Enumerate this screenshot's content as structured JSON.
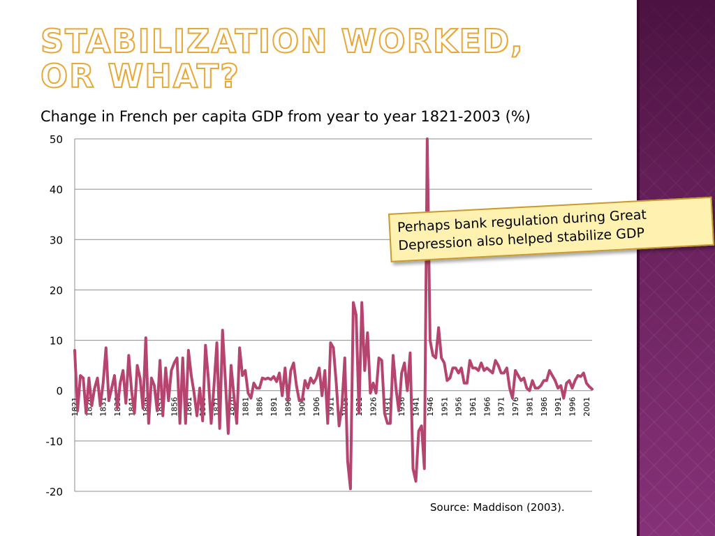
{
  "slide": {
    "title_line1": "Stabilization worked,",
    "title_line2": "or what?",
    "title_color": "#e8a838",
    "side_panel_color": "#7a2a6c"
  },
  "callout": {
    "text": "Perhaps bank regulation during Great Depression also helped stabilize GDP",
    "background": "#fff2b0",
    "border_color": "#c99a2e"
  },
  "source": "Source: Maddison (2003).",
  "chart_data": {
    "type": "line",
    "title": "Change in French per capita GDP from year to year 1821-2003 (%)",
    "xlabel": "",
    "ylabel": "",
    "ylim": [
      -20,
      50
    ],
    "yticks": [
      -20,
      -10,
      0,
      10,
      20,
      30,
      40,
      50
    ],
    "xticks": [
      1821,
      1826,
      1831,
      1836,
      1841,
      1846,
      1851,
      1856,
      1861,
      1866,
      1871,
      1876,
      1881,
      1886,
      1891,
      1896,
      1901,
      1906,
      1911,
      1916,
      1921,
      1926,
      1931,
      1936,
      1941,
      1946,
      1951,
      1956,
      1961,
      1966,
      1971,
      1976,
      1981,
      1986,
      1991,
      1996,
      2001
    ],
    "grid": true,
    "legend": "none",
    "line_color": "#b5446e",
    "x_start": 1821,
    "x_end": 2003,
    "series": [
      {
        "values": [
          8,
          -4,
          3,
          2.5,
          -4.5,
          2.5,
          -3,
          0.5,
          2.5,
          -3,
          1.5,
          8.5,
          -2,
          0.5,
          3,
          -3.5,
          1.5,
          4,
          -2.5,
          7,
          0,
          -4.5,
          5,
          2.5,
          -3.5,
          10.5,
          -6.5,
          2.5,
          1,
          -4,
          6,
          -5,
          4.5,
          -2,
          4,
          5.5,
          6.5,
          -6.5,
          6.5,
          -6.5,
          8,
          3,
          -0.5,
          -5,
          0.5,
          -6,
          9,
          2.5,
          -6.5,
          1,
          9.5,
          -7.5,
          12,
          2,
          -8.5,
          5,
          -1,
          -6.5,
          8.5,
          3,
          4,
          -0.5,
          -1.5,
          1.5,
          0.5,
          0.5,
          2.5,
          2.3,
          2.5,
          2.2,
          2.8,
          1.8,
          3.5,
          -1,
          4.5,
          -2,
          4,
          5.5,
          1,
          -2,
          -2,
          2,
          0.5,
          2.5,
          1.5,
          2.5,
          4.5,
          -1,
          4,
          -6.5,
          9.5,
          8.5,
          1.5,
          -7,
          -3,
          6.5,
          -14,
          -19.5,
          17.5,
          15,
          -4.5,
          17.5,
          4,
          11.5,
          -0.5,
          1.5,
          -0.5,
          6.5,
          6,
          -4.5,
          -6.5,
          -6.5,
          7,
          0.5,
          -4,
          3.5,
          5.5,
          0,
          7.5,
          -15.5,
          -18,
          -8,
          -7,
          -15.5,
          50,
          10,
          7,
          6.5,
          12.5,
          6.5,
          5.5,
          2,
          2.5,
          4.5,
          4.5,
          3.5,
          4.5,
          1.5,
          1.5,
          6,
          4.5,
          4.5,
          4,
          5.5,
          4,
          4.5,
          4,
          3.5,
          6,
          5,
          3.5,
          3.5,
          4.5,
          0.5,
          -1.5,
          4,
          3,
          2,
          2.5,
          0.5,
          0,
          2,
          0.5,
          0.5,
          1,
          2,
          2,
          4,
          3,
          2,
          0.5,
          1,
          -1.5,
          1.5,
          2,
          0.5,
          2,
          3,
          2.8,
          3.5,
          1.5,
          0.8,
          0.3
        ]
      }
    ]
  }
}
